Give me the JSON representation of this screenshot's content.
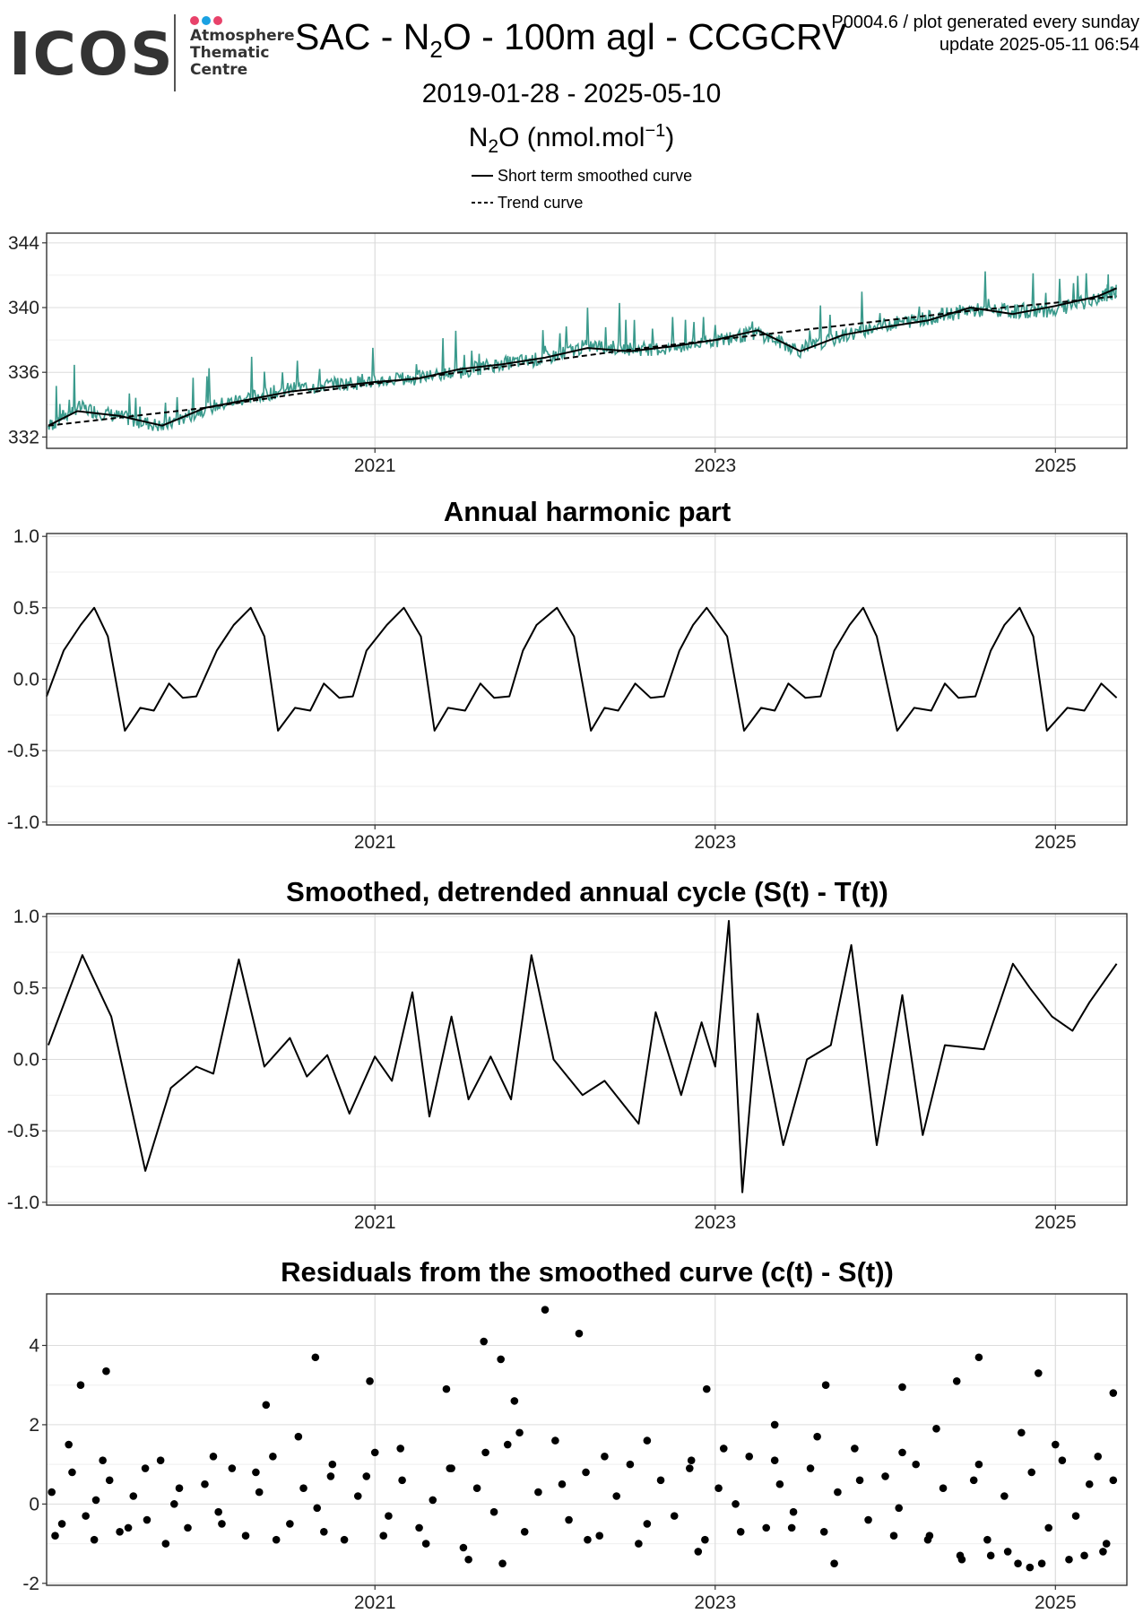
{
  "header": {
    "logo_text": "ICOS",
    "logo_subtitle": [
      "Atmosphere",
      "Thematic",
      "Centre"
    ],
    "logo_dot_colors": [
      "#e8426a",
      "#1aa1e2",
      "#e8426a"
    ],
    "title": {
      "pre": "SAC - N",
      "sub": "2",
      "post": "O - 100m agl - CCGCRV"
    },
    "meta_line1": "P0004.6 / plot generated every sunday",
    "meta_line2": "update  2025-05-11 06:54",
    "date_range": "2019-01-28 - 2025-05-10",
    "unit": {
      "pre": "N",
      "sub": "2",
      "mid": "O (nmol.mol",
      "sup": "−1",
      "post": ")"
    },
    "legend": [
      {
        "label": "Short term smoothed curve",
        "style": "solid"
      },
      {
        "label": "Trend curve",
        "style": "dashed"
      }
    ]
  },
  "colors": {
    "observed": "#3a9a8c",
    "curve": "#000000",
    "grid": "#dcdcdc",
    "frame": "#333333"
  },
  "chart_data": [
    {
      "type": "line",
      "title": "",
      "xlabel": "",
      "ylabel": "",
      "x_range": [
        2019.07,
        2025.42
      ],
      "ylim": [
        331.3,
        344.6
      ],
      "y_ticks": [
        344,
        340,
        336,
        332
      ],
      "x_ticks": [
        2021,
        2023,
        2025
      ],
      "grid": true,
      "series": [
        {
          "name": "",
          "color": "#3a9a8c",
          "style": "observed",
          "x": [
            2019.08,
            2019.25,
            2019.5,
            2019.75,
            2020.0,
            2020.25,
            2020.5,
            2020.75,
            2021.0,
            2021.25,
            2021.5,
            2021.75,
            2022.0,
            2022.25,
            2022.5,
            2022.75,
            2023.0,
            2023.25,
            2023.5,
            2023.75,
            2024.0,
            2024.25,
            2024.5,
            2024.75,
            2025.0,
            2025.25,
            2025.36
          ],
          "y": [
            332.6,
            333.8,
            333.2,
            332.6,
            333.7,
            334.4,
            334.9,
            335.2,
            335.4,
            335.6,
            336.0,
            336.5,
            336.8,
            337.6,
            337.4,
            337.4,
            337.9,
            338.4,
            337.3,
            338.2,
            338.9,
            339.3,
            339.8,
            339.7,
            339.8,
            340.5,
            341.0
          ]
        },
        {
          "name": "Short term smoothed curve",
          "color": "#000000",
          "style": "solid",
          "x": [
            2019.08,
            2019.25,
            2019.5,
            2019.75,
            2020.0,
            2020.25,
            2020.5,
            2020.75,
            2021.0,
            2021.25,
            2021.5,
            2021.75,
            2022.0,
            2022.25,
            2022.5,
            2022.75,
            2023.0,
            2023.25,
            2023.5,
            2023.75,
            2024.0,
            2024.25,
            2024.5,
            2024.75,
            2025.0,
            2025.25,
            2025.36
          ],
          "y": [
            332.7,
            333.6,
            333.3,
            332.7,
            333.8,
            334.3,
            334.8,
            335.1,
            335.4,
            335.6,
            336.2,
            336.5,
            336.9,
            337.5,
            337.3,
            337.6,
            338.0,
            338.6,
            337.3,
            338.3,
            338.8,
            339.2,
            340.0,
            339.6,
            340.1,
            340.7,
            341.2
          ]
        },
        {
          "name": "Trend curve",
          "color": "#000000",
          "style": "dashed",
          "x": [
            2019.08,
            2019.5,
            2020.0,
            2020.5,
            2021.0,
            2021.5,
            2022.0,
            2022.5,
            2023.0,
            2023.5,
            2024.0,
            2024.5,
            2025.0,
            2025.36
          ],
          "y": [
            332.7,
            333.2,
            333.8,
            334.6,
            335.3,
            336.0,
            336.7,
            337.4,
            338.0,
            338.6,
            339.2,
            339.8,
            340.3,
            340.7
          ]
        }
      ]
    },
    {
      "type": "line",
      "title": "Annual harmonic part",
      "x_range": [
        2019.07,
        2025.42
      ],
      "ylim": [
        -1.02,
        1.02
      ],
      "y_ticks": [
        1.0,
        0.5,
        0.0,
        -0.5,
        -1.0
      ],
      "y_tick_labels": [
        "1.0",
        "0.5",
        "0.0",
        "-0.5",
        "-1.0"
      ],
      "x_ticks": [
        2021,
        2023,
        2025
      ],
      "grid": true,
      "series": [
        {
          "name": "",
          "color": "#000000",
          "x": [
            2019.07,
            2019.17,
            2019.27,
            2019.35,
            2019.43,
            2019.53,
            2019.62,
            2019.7,
            2019.79,
            2019.87,
            2019.95,
            2020.07,
            2020.17,
            2020.27,
            2020.35,
            2020.43,
            2020.53,
            2020.62,
            2020.7,
            2020.79,
            2020.87,
            2020.95,
            2021.07,
            2021.17,
            2021.27,
            2021.35,
            2021.43,
            2021.53,
            2021.62,
            2021.7,
            2021.79,
            2021.87,
            2021.95,
            2022.07,
            2022.17,
            2022.27,
            2022.35,
            2022.43,
            2022.53,
            2022.62,
            2022.7,
            2022.79,
            2022.87,
            2022.95,
            2023.07,
            2023.17,
            2023.27,
            2023.35,
            2023.43,
            2023.53,
            2023.62,
            2023.7,
            2023.79,
            2023.87,
            2023.95,
            2024.07,
            2024.17,
            2024.27,
            2024.35,
            2024.43,
            2024.53,
            2024.62,
            2024.7,
            2024.79,
            2024.87,
            2024.95,
            2025.07,
            2025.17,
            2025.27,
            2025.36
          ],
          "y": [
            -0.12,
            0.2,
            0.38,
            0.5,
            0.3,
            -0.36,
            -0.2,
            -0.22,
            -0.03,
            -0.13,
            -0.12,
            0.2,
            0.38,
            0.5,
            0.3,
            -0.36,
            -0.2,
            -0.22,
            -0.03,
            -0.13,
            -0.12,
            0.2,
            0.38,
            0.5,
            0.3,
            -0.36,
            -0.2,
            -0.22,
            -0.03,
            -0.13,
            -0.12,
            0.2,
            0.38,
            0.5,
            0.3,
            -0.36,
            -0.2,
            -0.22,
            -0.03,
            -0.13,
            -0.12,
            0.2,
            0.38,
            0.5,
            0.3,
            -0.36,
            -0.2,
            -0.22,
            -0.03,
            -0.13,
            -0.12,
            0.2,
            0.38,
            0.5,
            0.3,
            -0.36,
            -0.2,
            -0.22,
            -0.03,
            -0.13,
            -0.12,
            0.2,
            0.38,
            0.5,
            0.3,
            -0.36,
            -0.2,
            -0.22,
            -0.03,
            -0.13
          ]
        }
      ]
    },
    {
      "type": "line",
      "title": "Smoothed, detrended annual cycle (S(t) - T(t))",
      "x_range": [
        2019.07,
        2025.42
      ],
      "ylim": [
        -1.02,
        1.02
      ],
      "y_ticks": [
        1.0,
        0.5,
        0.0,
        -0.5,
        -1.0
      ],
      "y_tick_labels": [
        "1.0",
        "0.5",
        "0.0",
        "-0.5",
        "-1.0"
      ],
      "x_ticks": [
        2021,
        2023,
        2025
      ],
      "grid": true,
      "series": [
        {
          "name": "",
          "color": "#000000",
          "x": [
            2019.08,
            2019.28,
            2019.45,
            2019.65,
            2019.8,
            2019.95,
            2020.05,
            2020.2,
            2020.35,
            2020.5,
            2020.6,
            2020.72,
            2020.85,
            2021.0,
            2021.1,
            2021.22,
            2021.32,
            2021.45,
            2021.55,
            2021.68,
            2021.8,
            2021.92,
            2022.05,
            2022.22,
            2022.35,
            2022.55,
            2022.65,
            2022.8,
            2022.92,
            2023.0,
            2023.08,
            2023.16,
            2023.25,
            2023.4,
            2023.54,
            2023.68,
            2023.8,
            2023.95,
            2024.1,
            2024.22,
            2024.35,
            2024.58,
            2024.75,
            2024.85,
            2024.98,
            2025.1,
            2025.2,
            2025.36
          ],
          "y": [
            0.1,
            0.73,
            0.3,
            -0.78,
            -0.2,
            -0.05,
            -0.1,
            0.7,
            -0.05,
            0.15,
            -0.12,
            0.03,
            -0.38,
            0.02,
            -0.15,
            0.47,
            -0.4,
            0.3,
            -0.28,
            0.02,
            -0.28,
            0.73,
            0.0,
            -0.25,
            -0.15,
            -0.45,
            0.33,
            -0.25,
            0.26,
            -0.05,
            0.97,
            -0.93,
            0.32,
            -0.6,
            0.0,
            0.1,
            0.8,
            -0.6,
            0.45,
            -0.53,
            0.1,
            0.07,
            0.67,
            0.5,
            0.3,
            0.2,
            0.4,
            0.67
          ]
        }
      ]
    },
    {
      "type": "scatter",
      "title": "Residuals from the smoothed curve (c(t) - S(t))",
      "x_range": [
        2019.07,
        2025.42
      ],
      "ylim": [
        -2.05,
        5.3
      ],
      "y_ticks": [
        4,
        2,
        0,
        -2
      ],
      "x_ticks": [
        2021,
        2023,
        2025
      ],
      "grid": true,
      "series": [
        {
          "name": "",
          "color": "#000000",
          "x": [
            2019.1,
            2019.16,
            2019.22,
            2019.3,
            2019.36,
            2019.44,
            2019.5,
            2019.58,
            2019.66,
            2019.74,
            2019.82,
            2019.9,
            2020.0,
            2020.08,
            2020.16,
            2020.24,
            2020.32,
            2020.4,
            2020.5,
            2020.58,
            2020.66,
            2020.74,
            2020.82,
            2020.9,
            2021.0,
            2021.08,
            2021.16,
            2021.26,
            2021.34,
            2021.44,
            2021.52,
            2021.6,
            2021.7,
            2021.78,
            2021.88,
            2021.96,
            2022.06,
            2022.14,
            2022.24,
            2022.32,
            2022.42,
            2022.5,
            2022.6,
            2022.68,
            2022.76,
            2022.86,
            2022.94,
            2023.02,
            2023.12,
            2023.2,
            2023.3,
            2023.38,
            2023.46,
            2023.56,
            2023.64,
            2023.72,
            2023.82,
            2023.9,
            2024.0,
            2024.08,
            2024.18,
            2024.26,
            2024.34,
            2024.44,
            2024.52,
            2024.6,
            2024.7,
            2024.78,
            2024.86,
            2024.96,
            2025.04,
            2025.12,
            2025.2,
            2025.28,
            2025.34,
            2019.2,
            2019.4,
            2019.65,
            2019.85,
            2020.05,
            2020.3,
            2020.55,
            2020.75,
            2020.95,
            2021.15,
            2021.45,
            2021.65,
            2021.85,
            2022.1,
            2022.35,
            2022.6,
            2022.85,
            2023.05,
            2023.35,
            2023.6,
            2023.85,
            2024.1,
            2024.3,
            2024.55,
            2024.8,
            2025.0,
            2025.25,
            2019.27,
            2019.42,
            2020.36,
            2020.65,
            2020.97,
            2021.42,
            2021.64,
            2021.74,
            2021.82,
            2022.0,
            2022.2,
            2022.95,
            2023.35,
            2023.65,
            2024.1,
            2024.42,
            2024.55,
            2024.9,
            2025.34,
            2019.12,
            2019.35,
            2019.55,
            2019.77,
            2020.1,
            2020.42,
            2020.7,
            2021.05,
            2021.3,
            2021.55,
            2021.75,
            2022.25,
            2022.55,
            2022.9,
            2023.15,
            2023.45,
            2023.7,
            2024.05,
            2024.25,
            2024.45,
            2024.62,
            2024.72,
            2024.85,
            2024.92,
            2025.08,
            2025.17,
            2025.3
          ],
          "y": [
            0.3,
            -0.5,
            0.8,
            -0.3,
            0.1,
            0.6,
            -0.7,
            0.2,
            -0.4,
            1.1,
            0.0,
            -0.6,
            0.5,
            -0.2,
            0.9,
            -0.8,
            0.3,
            1.2,
            -0.5,
            0.4,
            -0.1,
            0.7,
            -0.9,
            0.2,
            1.3,
            -0.3,
            0.6,
            -0.6,
            0.1,
            0.9,
            -1.1,
            0.4,
            -0.2,
            1.5,
            -0.7,
            0.3,
            1.6,
            -0.4,
            0.8,
            -0.8,
            0.2,
            1.0,
            -0.5,
            0.6,
            -0.3,
            1.1,
            -0.9,
            0.4,
            0.0,
            1.2,
            -0.6,
            0.5,
            -0.2,
            0.9,
            -0.7,
            0.3,
            1.4,
            -0.4,
            0.7,
            -0.1,
            1.0,
            -0.8,
            0.4,
            -1.3,
            0.6,
            -0.9,
            0.2,
            -1.5,
            0.8,
            -0.6,
            1.1,
            -0.3,
            0.5,
            -1.2,
            0.6,
            1.5,
            1.1,
            0.9,
            0.4,
            1.2,
            0.8,
            1.7,
            1.0,
            0.7,
            1.4,
            0.9,
            1.3,
            1.8,
            0.5,
            1.2,
            1.6,
            0.9,
            1.4,
            1.1,
            1.7,
            0.6,
            1.3,
            1.9,
            1.0,
            1.8,
            1.5,
            1.2,
            3.0,
            3.35,
            2.5,
            3.7,
            3.1,
            2.9,
            4.1,
            3.65,
            2.6,
            4.9,
            4.3,
            2.9,
            2.0,
            3.0,
            2.95,
            3.1,
            3.7,
            3.3,
            2.8,
            -0.8,
            -0.9,
            -0.6,
            -1.0,
            -0.5,
            -0.9,
            -0.7,
            -0.8,
            -1.0,
            -1.4,
            -1.5,
            -0.9,
            -1.0,
            -1.2,
            -0.7,
            -0.6,
            -1.5,
            -0.8,
            -0.9,
            -1.4,
            -1.3,
            -1.2,
            -1.6,
            -1.5,
            -1.4,
            -1.3,
            -1.0
          ]
        }
      ]
    }
  ]
}
